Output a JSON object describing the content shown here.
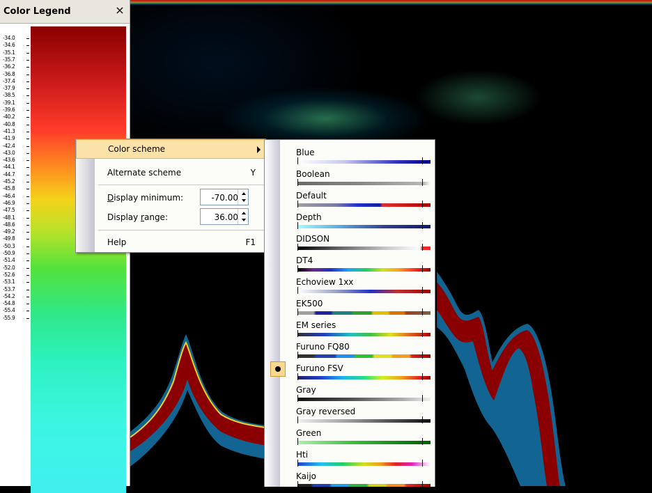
{
  "legend": {
    "title": "Color Legend",
    "close_symbol": "×",
    "ticks": [
      "-34.0",
      "-34.6",
      "-35.1",
      "-35.7",
      "-36.2",
      "-36.8",
      "-37.4",
      "-37.9",
      "-38.5",
      "-39.1",
      "-39.6",
      "-40.2",
      "-40.8",
      "-41.3",
      "-41.9",
      "-42.4",
      "-43.0",
      "-43.6",
      "-44.1",
      "-44.7",
      "-45.2",
      "-45.8",
      "-46.4",
      "-46.9",
      "-47.5",
      "-48.1",
      "-48.6",
      "-49.2",
      "-49.8",
      "-50.3",
      "-50.9",
      "-51.4",
      "-52.0",
      "-52.6",
      "-53.1",
      "-53.7",
      "-54.2",
      "-54.8",
      "-55.4",
      "-55.9"
    ]
  },
  "menu": {
    "color_scheme": "Color scheme",
    "alternate_scheme": "Alternate scheme",
    "alternate_shortcut": "Y",
    "display_minimum_label_pre": "",
    "display_minimum_label_u": "D",
    "display_minimum_label_post": "isplay minimum:",
    "display_minimum_value": "-70.00",
    "display_range_label_pre": "Display ",
    "display_range_label_u": "r",
    "display_range_label_post": "ange:",
    "display_range_value": "36.00",
    "help": "Help",
    "help_shortcut": "F1"
  },
  "schemes": [
    {
      "name": "Blue",
      "selected": false,
      "gradient": "linear-gradient(to right,#ffffff 0%,#c8c8f0 35%,#3030c0 75%,#00008a 100%)"
    },
    {
      "name": "Boolean",
      "selected": false,
      "gradient": "linear-gradient(to right,#6a6a6a 0%,#8a8a8a 50%,#b8b8b8 95%,#ffffff 100%)"
    },
    {
      "name": "Default",
      "selected": false,
      "gradient": "linear-gradient(to right,#a0a0a0 0%,#7878a8 30%,#2030d0 45%,#1020a0 62%,#e03030 64%,#b00000 100%)"
    },
    {
      "name": "Depth",
      "selected": false,
      "gradient": "linear-gradient(to right,#a0ffff 0%,#60b0e0 30%,#304090 65%,#101870 100%)"
    },
    {
      "name": "DIDSON",
      "selected": false,
      "gradient": "linear-gradient(to right,#000000 0%,#606060 30%,#d0d0d0 70%,#ffffff 92%,#ff2020 94%,#ff2020 100%)"
    },
    {
      "name": "DT4",
      "selected": false,
      "gradient": "linear-gradient(to right,#000000 0%,#6a2a8a 12%,#2030c0 25%,#20a0ff 38%,#20d060 52%,#d0e020 64%,#ffa020 76%,#ff3020 88%,#a00000 100%)"
    },
    {
      "name": "Echoview 1xx",
      "selected": false,
      "gradient": "linear-gradient(to right,#ffffff 0%,#9aa0c0 30%,#2030c0 55%,#c03030 75%,#a00000 100%)"
    },
    {
      "name": "EK500",
      "selected": false,
      "gradient": "linear-gradient(to right,#a0a0a0 0%,#a0a0a0 12%,#2020a0 14%,#2020a0 25%,#208080 27%,#208080 40%,#30a030 42%,#30a030 55%,#e0c000 57%,#e0c000 68%,#e07000 70%,#e07000 80%,#a04020 82%,#806040 100%)"
    },
    {
      "name": "EM series",
      "selected": false,
      "gradient": "linear-gradient(to right,#303030 0%,#2040c0 20%,#20c0c0 40%,#40c040 55%,#e0e020 70%,#e06020 85%,#b00000 100%)"
    },
    {
      "name": "Furuno FQ80",
      "selected": false,
      "gradient": "linear-gradient(to right,#303030 0%,#303030 12%,#2040b0 14%,#2040b0 28%,#2090f0 30%,#2090f0 42%,#30c030 44%,#30c030 56%,#e0e020 58%,#e0e020 70%,#f0a020 72%,#f0a020 84%,#e02020 86%,#a00000 100%)"
    },
    {
      "name": "Furuno FSV",
      "selected": true,
      "gradient": "linear-gradient(to right,#202060 0%,#2040d0 18%,#20b0f0 34%,#20e080 50%,#d0f020 64%,#f0a020 78%,#e02020 92%,#a00000 100%)"
    },
    {
      "name": "Gray",
      "selected": false,
      "gradient": "linear-gradient(to right,#101010 0%,#505050 40%,#b0b0b0 80%,#f0f0f0 100%)"
    },
    {
      "name": "Gray reversed",
      "selected": false,
      "gradient": "linear-gradient(to right,#f0f0f0 0%,#b0b0b0 30%,#505050 70%,#101010 100%)"
    },
    {
      "name": "Green",
      "selected": false,
      "gradient": "linear-gradient(to right,#b0f0b0 0%,#40c040 40%,#108010 80%,#006000 100%)"
    },
    {
      "name": "Hti",
      "selected": false,
      "gradient": "linear-gradient(to right,#2040d0 0%,#20c0f0 18%,#20d060 34%,#d0e020 50%,#f0a020 62%,#e02020 74%,#e020c0 86%,#ffffff 100%)"
    },
    {
      "name": "Kaijo",
      "selected": false,
      "gradient": "linear-gradient(to right,#202020 0%,#202020 10%,#2040b0 12%,#2040b0 24%,#20a0e0 26%,#20a0e0 38%,#30b040 40%,#30b040 52%,#d0d020 54%,#d0d020 66%,#f09020 68%,#f09020 80%,#e03030 82%,#a00000 100%)"
    }
  ]
}
